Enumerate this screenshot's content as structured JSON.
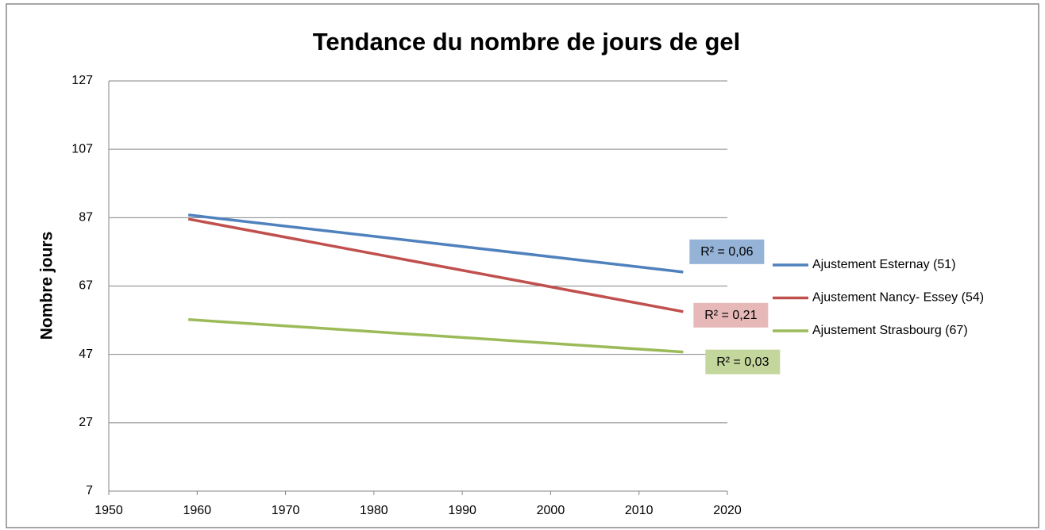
{
  "chart_data": {
    "type": "line",
    "title": "Tendance du nombre de jours de gel",
    "y_label": "Nombre jours",
    "x": [
      1959,
      2015
    ],
    "series": [
      {
        "name": "Ajustement Esternay (51)",
        "color": "#4f81bd",
        "values": [
          87.8,
          71.1
        ]
      },
      {
        "name": "Ajustement Nancy- Essey (54)",
        "color": "#c0504d",
        "values": [
          86.6,
          59.5
        ]
      },
      {
        "name": "Ajustement Strasbourg (67)",
        "color": "#9bbb59",
        "values": [
          57.2,
          47.7
        ]
      }
    ],
    "annotations": [
      {
        "text": "R² = 0,06",
        "color": "#95b3d7"
      },
      {
        "text": "R² = 0,21",
        "color": "#e6b9b8"
      },
      {
        "text": "R² = 0,03",
        "color": "#c3d69b"
      }
    ],
    "xlim": [
      1950,
      2020
    ],
    "xticks": [
      1950,
      1960,
      1970,
      1980,
      1990,
      2000,
      2010,
      2020
    ],
    "ylim": [
      7,
      127
    ],
    "yticks": [
      7,
      27,
      47,
      67,
      87,
      107,
      127
    ],
    "grid": true,
    "legend": "right"
  }
}
